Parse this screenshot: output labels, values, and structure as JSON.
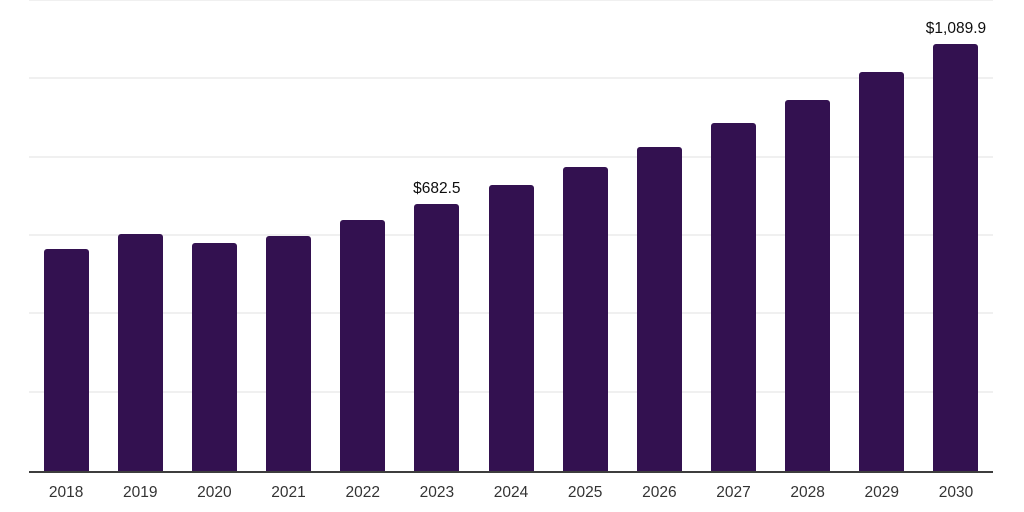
{
  "chart_data": {
    "type": "bar",
    "title": "",
    "xlabel": "",
    "ylabel": "",
    "categories": [
      "2018",
      "2019",
      "2020",
      "2021",
      "2022",
      "2023",
      "2024",
      "2025",
      "2026",
      "2027",
      "2028",
      "2029",
      "2030"
    ],
    "values": [
      567,
      605,
      582,
      601,
      640,
      682.5,
      729,
      776,
      827,
      888,
      948,
      1018,
      1089.9
    ],
    "data_labels": [
      "",
      "",
      "",
      "",
      "",
      "$682.5",
      "",
      "",
      "",
      "",
      "",
      "",
      "$1,089.9"
    ],
    "ylim": [
      0,
      1200
    ],
    "grid_step": 200,
    "grid": true,
    "legend": false,
    "y_axis_labels_visible": false,
    "bar_color": "#331150",
    "axis_color": "#3d3d3d",
    "gridline_color": "#f0f0f0",
    "data_label_color": "#0d0d0d",
    "tick_label_color": "#333333",
    "background_color": "#ffffff"
  }
}
